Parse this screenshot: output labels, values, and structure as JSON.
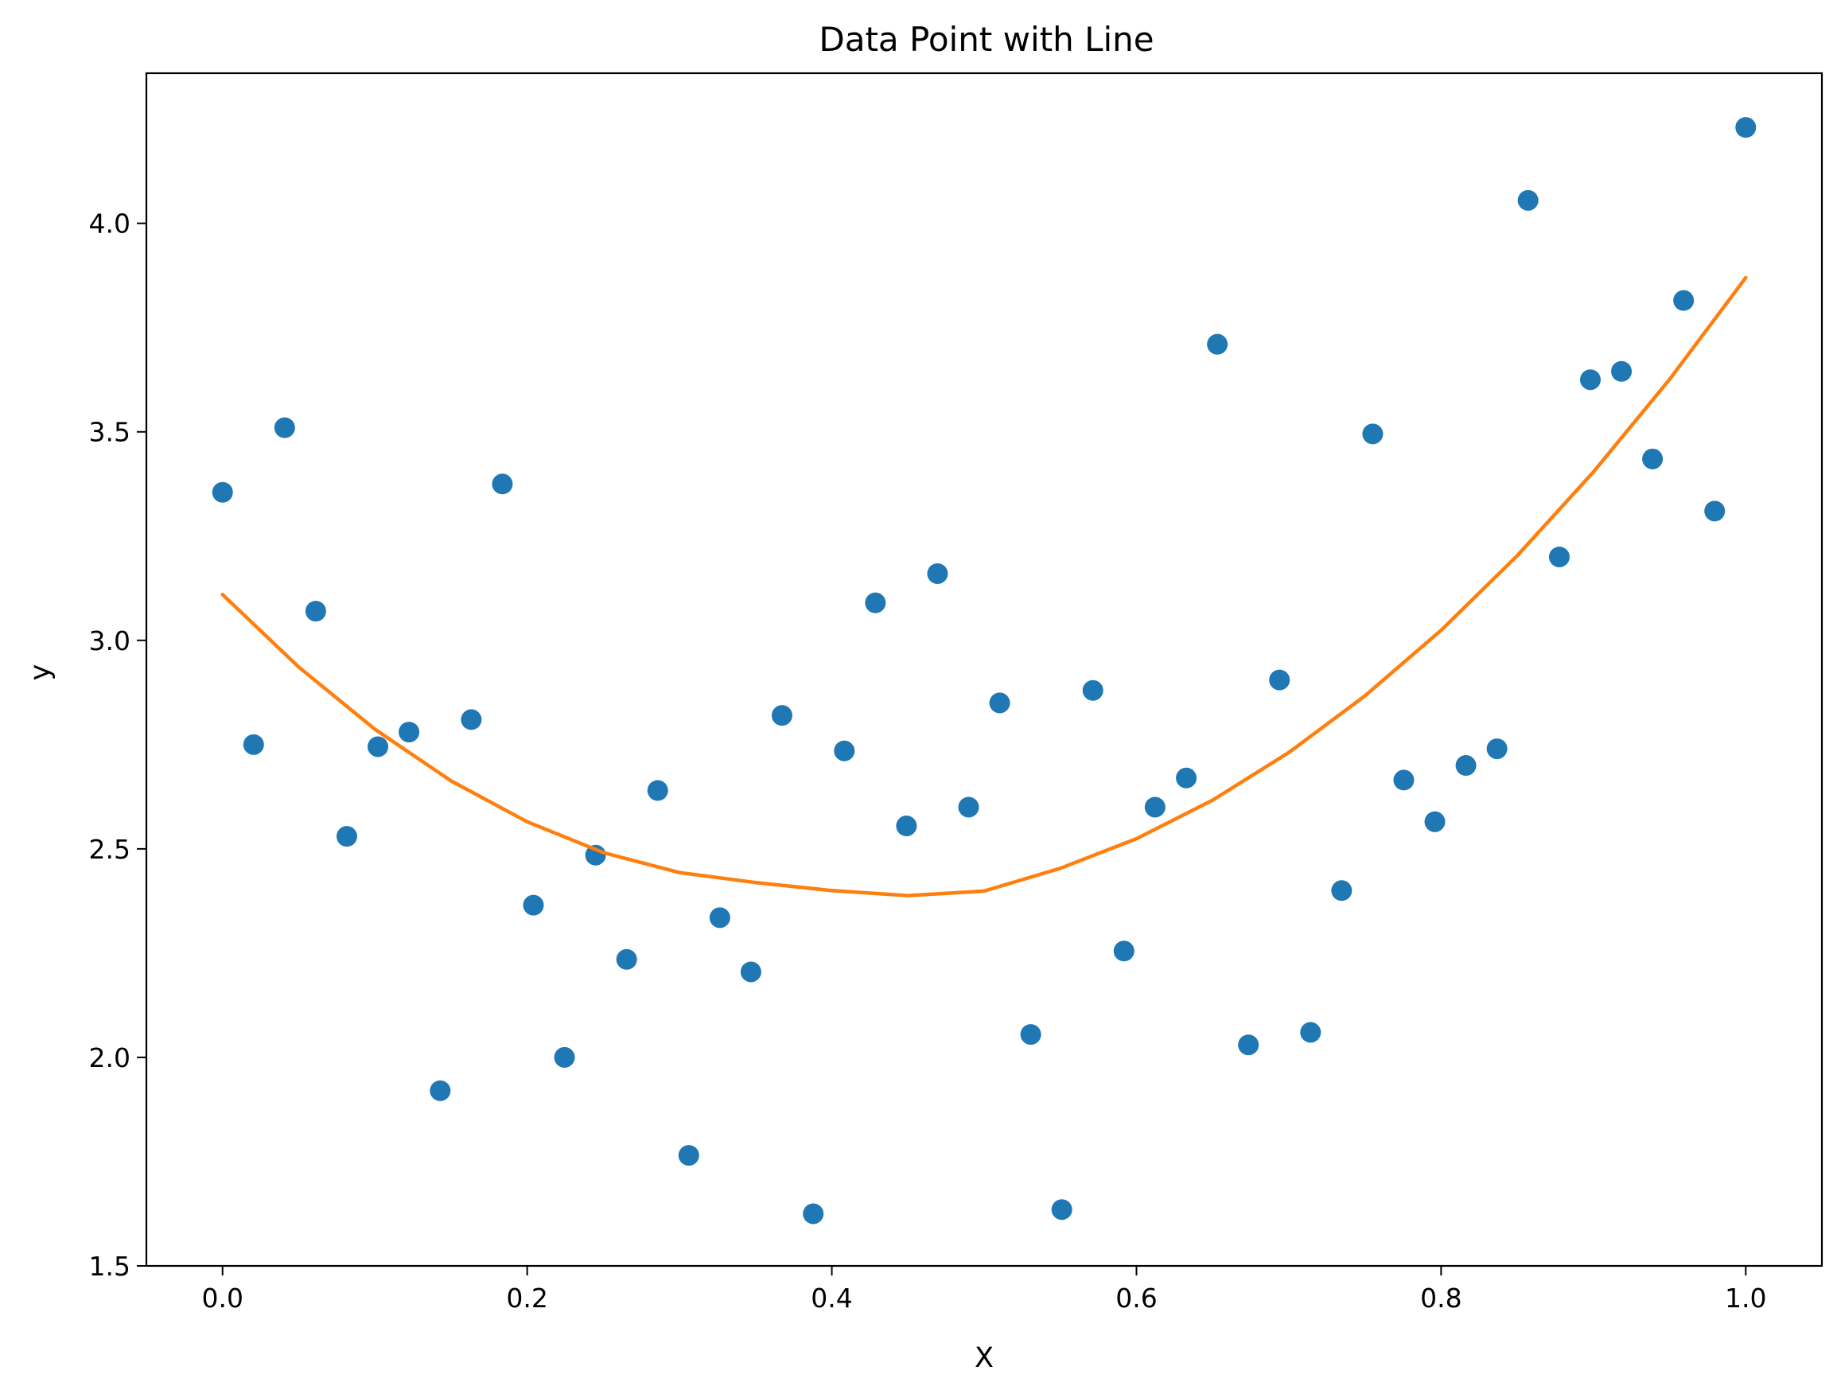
{
  "chart_data": {
    "type": "scatter",
    "title": "Data Point with Line",
    "xlabel": "X",
    "ylabel": "y",
    "xlim": [
      -0.05,
      1.05
    ],
    "ylim": [
      1.5,
      4.36
    ],
    "xticks": [
      0.0,
      0.2,
      0.4,
      0.6,
      0.8,
      1.0
    ],
    "yticks": [
      1.5,
      2.0,
      2.5,
      3.0,
      3.5,
      4.0
    ],
    "xtick_labels": [
      "0.0",
      "0.2",
      "0.4",
      "0.6",
      "0.8",
      "1.0"
    ],
    "ytick_labels": [
      "1.5",
      "2.0",
      "2.5",
      "3.0",
      "3.5",
      "4.0"
    ],
    "grid": false,
    "legend": "none",
    "series": [
      {
        "kind": "scatter",
        "color": "#1f77b4",
        "x": [
          0.0,
          0.0204,
          0.0408,
          0.0612,
          0.0816,
          0.102,
          0.1224,
          0.1429,
          0.1633,
          0.1837,
          0.2041,
          0.2245,
          0.2449,
          0.2653,
          0.2857,
          0.3061,
          0.3265,
          0.3469,
          0.3673,
          0.3878,
          0.4082,
          0.4286,
          0.449,
          0.4694,
          0.4898,
          0.5102,
          0.5306,
          0.551,
          0.5714,
          0.5918,
          0.6122,
          0.6327,
          0.6531,
          0.6735,
          0.6939,
          0.7143,
          0.7347,
          0.7551,
          0.7755,
          0.7959,
          0.8163,
          0.8367,
          0.8571,
          0.8776,
          0.898,
          0.9184,
          0.9388,
          0.9592,
          0.9796,
          1.0
        ],
        "y": [
          3.355,
          2.75,
          3.51,
          3.07,
          2.53,
          2.745,
          2.78,
          1.92,
          2.81,
          3.375,
          2.365,
          2.0,
          2.485,
          2.235,
          2.64,
          1.765,
          2.335,
          2.205,
          2.82,
          1.625,
          2.735,
          3.09,
          2.555,
          3.16,
          2.6,
          2.85,
          2.055,
          1.635,
          2.88,
          2.255,
          2.6,
          2.67,
          3.71,
          2.03,
          2.905,
          2.06,
          2.4,
          3.495,
          2.665,
          2.565,
          2.7,
          2.74,
          4.055,
          3.2,
          3.625,
          3.645,
          3.435,
          3.815,
          3.31,
          4.23
        ]
      },
      {
        "kind": "line",
        "color": "#ff7f0e",
        "x": [
          0.0,
          0.05,
          0.1,
          0.15,
          0.2,
          0.25,
          0.3,
          0.35,
          0.4,
          0.45,
          0.5,
          0.55,
          0.6,
          0.65,
          0.7,
          0.75,
          0.8,
          0.85,
          0.9,
          0.95,
          1.0
        ],
        "y": [
          3.11,
          2.936,
          2.787,
          2.663,
          2.565,
          2.491,
          2.443,
          2.4193,
          2.4,
          2.3879,
          2.3988,
          2.4534,
          2.5243,
          2.6169,
          2.731,
          2.8668,
          3.0242,
          3.2032,
          3.4037,
          3.6259,
          3.8697
        ]
      }
    ]
  }
}
